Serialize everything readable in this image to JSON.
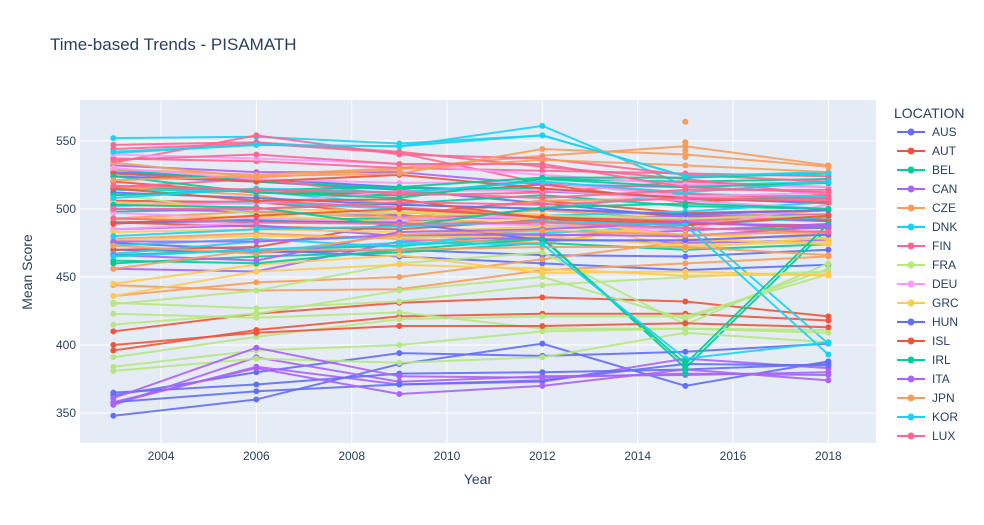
{
  "chart_data": {
    "type": "line",
    "title": "Time-based Trends - PISAMATH",
    "xlabel": "Year",
    "ylabel": "Mean Score",
    "xlim": [
      2002.3,
      2019.0
    ],
    "ylim": [
      328,
      580
    ],
    "x_ticks": [
      "2004",
      "2006",
      "2008",
      "2010",
      "2012",
      "2014",
      "2016",
      "2018"
    ],
    "y_ticks": [
      "350",
      "400",
      "450",
      "500",
      "550"
    ],
    "grid": true,
    "legend": {
      "title": "LOCATION",
      "placement": "right"
    },
    "x": [
      2003,
      2006,
      2009,
      2012,
      2015,
      2018
    ],
    "series": [
      {
        "name": "AUS",
        "color": "#636efa",
        "lines": [
          [
            524,
            520,
            514,
            504,
            494,
            491
          ],
          [
            475,
            470,
            465,
            460,
            455,
            459
          ],
          [
            348,
            360,
            386,
            401,
            370,
            388
          ],
          [
            363,
            380,
            394,
            392,
            395,
            401
          ],
          [
            527,
            522,
            516,
            513,
            508,
            504
          ],
          [
            470,
            468,
            470,
            466,
            465,
            470
          ]
        ]
      },
      {
        "name": "AUT",
        "color": "#ef553b",
        "lines": [
          [
            506,
            505,
            496,
            506,
            497,
            499
          ],
          [
            470,
            472,
            490,
            500,
            495,
            492
          ],
          [
            396,
            411,
            421,
            423,
            423,
            418
          ],
          [
            410,
            423,
            431,
            435,
            432,
            421
          ],
          [
            520,
            512,
            510,
            518,
            505,
            510
          ],
          [
            490,
            487,
            485,
            492,
            489,
            488
          ]
        ]
      },
      {
        "name": "BEL",
        "color": "#00cc96",
        "lines": [
          [
            529,
            520,
            515,
            515,
            507,
            508
          ],
          [
            498,
            500,
            504,
            510,
            502,
            500
          ],
          [
            460,
            465,
            468,
            475,
            470,
            474
          ],
          [
            515,
            514,
            510,
            522,
            520,
            522
          ],
          [
            490,
            492,
            493,
            488,
            485,
            486
          ],
          [
            466,
            470,
            473,
            479,
            383,
            486
          ]
        ]
      },
      {
        "name": "CAN",
        "color": "#ab63fa",
        "lines": [
          [
            532,
            527,
            527,
            518,
            516,
            512
          ],
          [
            456,
            454,
            476,
            480,
            484,
            489
          ],
          [
            357,
            384,
            371,
            373,
            390,
            383
          ],
          [
            356,
            391,
            373,
            377,
            378,
            380
          ],
          [
            500,
            498,
            495,
            492,
            495,
            496
          ],
          [
            485,
            488,
            480,
            478,
            475,
            477
          ]
        ]
      },
      {
        "name": "CZE",
        "color": "#fa9d5b",
        "lines": [
          [
            516,
            510,
            493,
            499,
            492,
            499
          ],
          [
            493,
            498,
            493,
            506,
            508,
            510
          ],
          [
            436,
            446,
            450,
            463,
            476,
            482
          ],
          [
            444,
            440,
            441,
            455,
            460,
            465
          ],
          [
            529,
            525,
            530,
            539,
            546,
            532
          ],
          [
            478,
            482,
            478,
            475,
            490,
            495
          ]
        ]
      },
      {
        "name": "DNK",
        "color": "#19d3f3",
        "lines": [
          [
            514,
            513,
            503,
            500,
            511,
            509
          ],
          [
            541,
            547,
            546,
            561,
            517,
            520
          ],
          [
            552,
            553,
            548,
            554,
            524,
            527
          ],
          [
            467,
            476,
            480,
            482,
            488,
            494
          ],
          [
            502,
            505,
            500,
            495,
            498,
            505
          ],
          [
            473,
            478,
            472,
            486,
            492,
            401
          ]
        ]
      },
      {
        "name": "FIN",
        "color": "#ff6692",
        "lines": [
          [
            544,
            548,
            541,
            519,
            511,
            507
          ],
          [
            534,
            554,
            540,
            537,
            525,
            520
          ],
          [
            516,
            522,
            510,
            512,
            520,
            516
          ],
          [
            547,
            549,
            542,
            531,
            522,
            510
          ],
          [
            503,
            506,
            501,
            495,
            491,
            496
          ],
          [
            537,
            535,
            530,
            528,
            526,
            524
          ]
        ]
      },
      {
        "name": "FRA",
        "color": "#b6e880",
        "lines": [
          [
            511,
            496,
            497,
            495,
            493,
            495
          ],
          [
            423,
            420,
            424,
            412,
            412,
            411
          ],
          [
            391,
            406,
            419,
            421,
            421,
            452
          ],
          [
            381,
            390,
            387,
            391,
            409,
            402
          ],
          [
            431,
            427,
            432,
            444,
            450,
            454
          ],
          [
            415,
            423,
            440,
            450,
            419,
            456
          ],
          [
            430,
            440,
            460,
            468,
            415,
            460
          ],
          [
            384,
            396,
            400,
            410,
            412,
            409
          ]
        ]
      },
      {
        "name": "DEU",
        "color": "#ff97ff",
        "lines": [
          [
            503,
            504,
            513,
            514,
            506,
            500
          ],
          [
            485,
            490,
            492,
            495,
            480,
            484
          ],
          [
            530,
            522,
            519,
            520,
            509,
            512
          ],
          [
            540,
            537,
            533,
            525,
            518,
            516
          ],
          [
            497,
            493,
            490,
            488,
            485,
            503
          ]
        ]
      },
      {
        "name": "GRC",
        "color": "#fecb52",
        "lines": [
          [
            445,
            459,
            466,
            453,
            454,
            451
          ],
          [
            436,
            454,
            459,
            456,
            451,
            452
          ],
          [
            483,
            485,
            483,
            487,
            481,
            478
          ],
          [
            492,
            495,
            490,
            493,
            471,
            479
          ],
          [
            505,
            500,
            498,
            496,
            478,
            474
          ],
          [
            477,
            480,
            479,
            480,
            473,
            476
          ]
        ]
      },
      {
        "name": "HUN",
        "color": "#636efa",
        "lines": [
          [
            490,
            491,
            490,
            477,
            477,
            481
          ],
          [
            365,
            371,
            379,
            380,
            382,
            386
          ],
          [
            358,
            366,
            371,
            374,
            386,
            385
          ],
          [
            512,
            508,
            503,
            500,
            496,
            499
          ]
        ]
      },
      {
        "name": "ISL",
        "color": "#ef553b",
        "lines": [
          [
            515,
            506,
            507,
            493,
            488,
            495
          ],
          [
            489,
            495,
            500,
            494,
            490,
            486
          ],
          [
            400,
            409,
            414,
            414,
            416,
            413
          ],
          [
            526,
            520,
            525,
            515,
            508,
            505
          ]
        ]
      },
      {
        "name": "IRL",
        "color": "#00cc96",
        "lines": [
          [
            503,
            501,
            487,
            501,
            504,
            500
          ],
          [
            524,
            512,
            508,
            522,
            516,
            519
          ],
          [
            462,
            460,
            470,
            478,
            386,
            489
          ],
          [
            510,
            514,
            516,
            523,
            523,
            526
          ]
        ]
      },
      {
        "name": "ITA",
        "color": "#ab63fa",
        "lines": [
          [
            466,
            462,
            483,
            485,
            490,
            487
          ],
          [
            358,
            383,
            364,
            370,
            382,
            374
          ],
          [
            361,
            398,
            377,
            376,
            379,
            378
          ],
          [
            476,
            476,
            481,
            481,
            480,
            487
          ]
        ]
      },
      {
        "name": "JPN",
        "color": "#fa9d5b",
        "lines": [
          [
            534,
            523,
            529,
            536,
            532,
            527
          ],
          [
            521,
            524,
            526,
            544,
            540,
            531
          ],
          [
            473,
            467,
            481,
            484,
            481,
            483
          ],
          [
            456,
            470,
            470,
            472,
            472,
            466
          ]
        ]
      },
      {
        "name": "KOR",
        "color": "#19d3f3",
        "lines": [
          [
            542,
            547,
            546,
            554,
            524,
            526
          ],
          [
            508,
            515,
            512,
            520,
            512,
            520
          ],
          [
            480,
            485,
            487,
            491,
            488,
            393
          ],
          [
            465,
            470,
            475,
            474,
            390,
            402
          ]
        ]
      },
      {
        "name": "LUX",
        "color": "#ff6692",
        "lines": [
          [
            493,
            490,
            489,
            490,
            486,
            483
          ],
          [
            517,
            514,
            512,
            508,
            514,
            514
          ],
          [
            536,
            540,
            533,
            533,
            516,
            512
          ],
          [
            500,
            500,
            505,
            503,
            508,
            506
          ]
        ]
      }
    ],
    "outliers_2015": [
      {
        "name": "JPN",
        "color": "#fa9d5b",
        "values": [
          564,
          549,
          546,
          543,
          540,
          538
        ]
      },
      {
        "name": "IRL",
        "color": "#00cc96",
        "values": [
          388,
          385,
          383,
          381,
          379
        ]
      }
    ]
  }
}
